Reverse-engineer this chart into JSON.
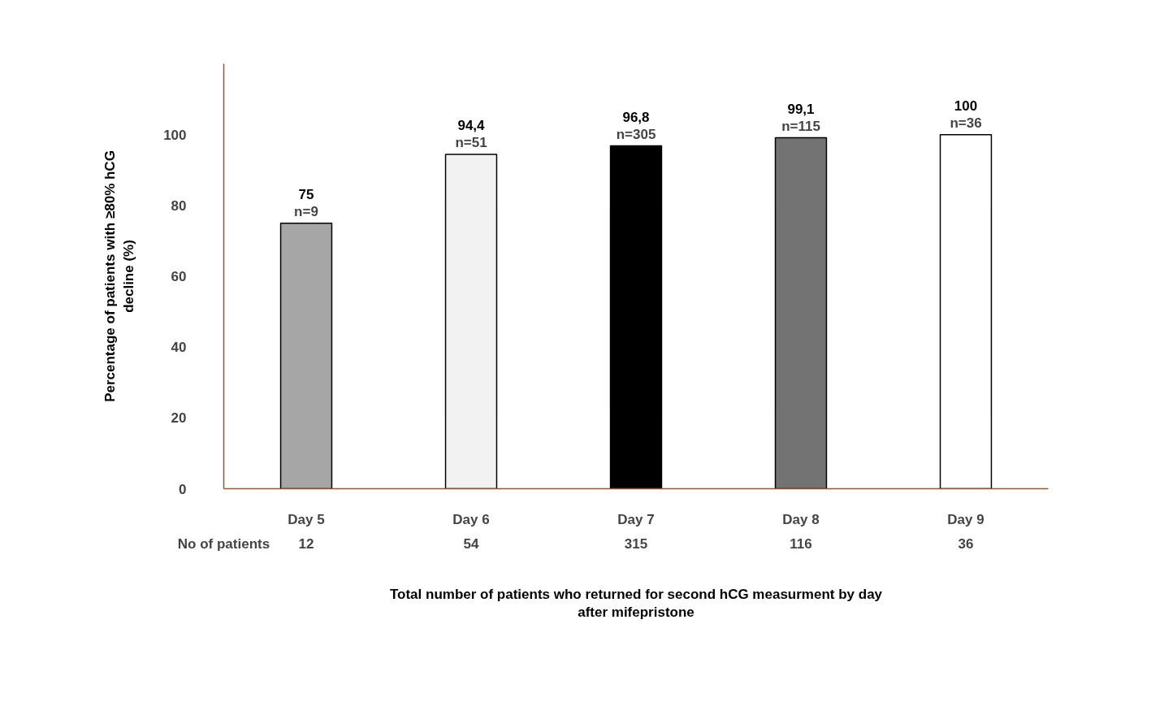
{
  "chart_data": {
    "type": "bar",
    "xlabel": "Total number of patients who returned for second hCG measurment by day after mifepristone",
    "ylabel": "Percentage of patients with ≥80% hCG decline (%)",
    "categories": [
      "Day 5",
      "Day 6",
      "Day 7",
      "Day 8",
      "Day 9"
    ],
    "values": [
      75,
      94.4,
      96.8,
      99.1,
      100
    ],
    "colors": [
      "#a6a6a6",
      "#f2f2f2",
      "#000000",
      "#737373",
      "#ffffff"
    ],
    "value_labels": [
      "75",
      "94,4",
      "96,8",
      "99,1",
      "100"
    ],
    "ylim": [
      0,
      120
    ],
    "yticks": [
      0,
      20,
      40,
      60,
      80,
      100
    ],
    "grid": false,
    "annotations": [
      {
        "text": "n=9",
        "x": "Day 5",
        "y": 75
      },
      {
        "text": "n=51",
        "x": "Day 6",
        "y": 94.4
      },
      {
        "text": "n=305",
        "x": "Day 7",
        "y": 96.8
      },
      {
        "text": "n=115",
        "x": "Day 8",
        "y": 99.1
      },
      {
        "text": "n=36",
        "x": "Day 9",
        "y": 100
      },
      "No of patients",
      "12",
      "54",
      "315",
      "116",
      "36"
    ]
  }
}
